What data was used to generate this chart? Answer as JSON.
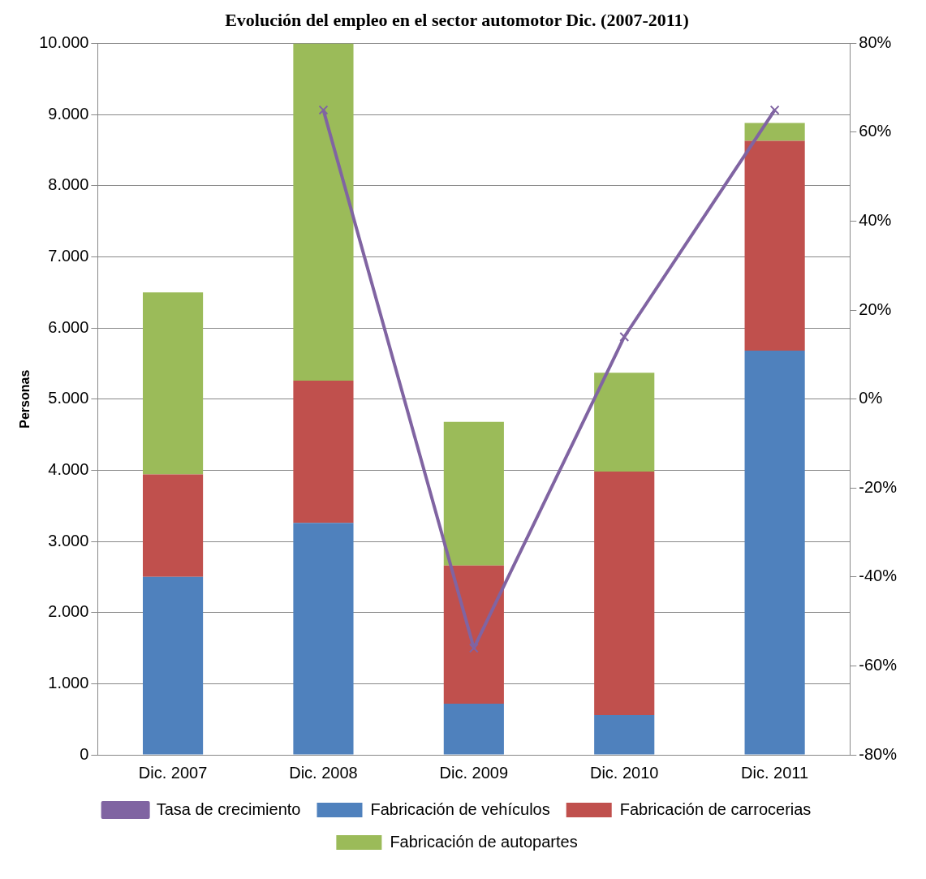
{
  "chart_data": {
    "type": "bar",
    "title": "Evolución del empleo en el sector automotor Dic. (2007-2011)",
    "ylabel": "Personas",
    "categories": [
      "Dic. 2007",
      "Dic. 2008",
      "Dic. 2009",
      "Dic. 2010",
      "Dic. 2011"
    ],
    "stacked": true,
    "series": [
      {
        "name": "Fabricación de vehículos",
        "color": "#4f81bd",
        "values": [
          2500,
          3260,
          720,
          560,
          5680
        ]
      },
      {
        "name": "Fabricación de carrocerias",
        "color": "#c0504d",
        "values": [
          1440,
          2000,
          1940,
          3420,
          2950
        ]
      },
      {
        "name": "Fabricación de autopartes",
        "color": "#9bbb59",
        "values": [
          2560,
          4740,
          2020,
          1390,
          250
        ]
      },
      {
        "name": "Tasa de crecimiento",
        "type": "line",
        "axis": "y2",
        "color": "#8064a2",
        "marker": "cross",
        "values": [
          null,
          65,
          -56,
          14,
          65
        ]
      }
    ],
    "ylim": [
      0,
      10000
    ],
    "yticks": [
      {
        "value": 0,
        "label": "0"
      },
      {
        "value": 1000,
        "label": "1.000"
      },
      {
        "value": 2000,
        "label": "2.000"
      },
      {
        "value": 3000,
        "label": "3.000"
      },
      {
        "value": 4000,
        "label": "4.000"
      },
      {
        "value": 5000,
        "label": "5.000"
      },
      {
        "value": 6000,
        "label": "6.000"
      },
      {
        "value": 7000,
        "label": "7.000"
      },
      {
        "value": 8000,
        "label": "8.000"
      },
      {
        "value": 9000,
        "label": "9.000"
      },
      {
        "value": 10000,
        "label": "10.000"
      }
    ],
    "y2lim": [
      -80,
      80
    ],
    "y2ticks": [
      {
        "value": -80,
        "label": "-80%"
      },
      {
        "value": -60,
        "label": "-60%"
      },
      {
        "value": -40,
        "label": "-40%"
      },
      {
        "value": -20,
        "label": "-20%"
      },
      {
        "value": 0,
        "label": "0%"
      },
      {
        "value": 20,
        "label": "20%"
      },
      {
        "value": 40,
        "label": "40%"
      },
      {
        "value": 60,
        "label": "60%"
      },
      {
        "value": 80,
        "label": "80%"
      }
    ],
    "grid": "y",
    "legend": "bottom"
  }
}
